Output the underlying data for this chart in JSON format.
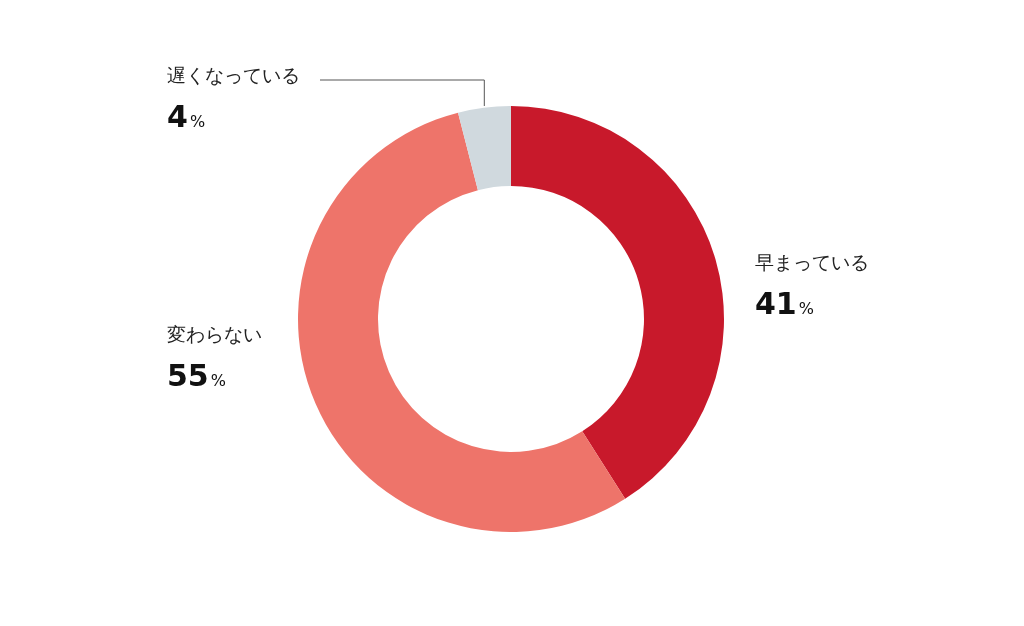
{
  "chart_data": {
    "type": "donut",
    "categories": [
      "早まっている",
      "変わらない",
      "遅くなっている"
    ],
    "values": [
      41,
      55,
      4
    ],
    "colors": [
      "#c8192b",
      "#ee746a",
      "#d0d9de"
    ],
    "value_labels": [
      "41%",
      "55%",
      "4%"
    ]
  }
}
